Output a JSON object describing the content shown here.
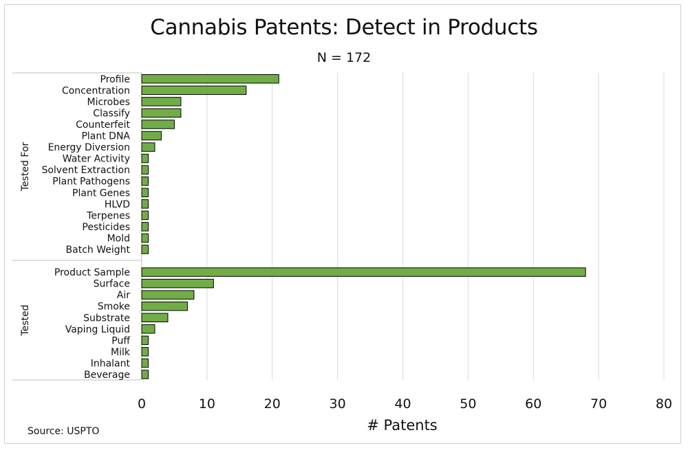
{
  "chart_data": {
    "type": "bar",
    "orientation": "horizontal",
    "title": "Cannabis Patents: Detect in Products",
    "subtitle": "N = 172",
    "xlabel": "# Patents",
    "source": "Source: USPTO",
    "xlim": [
      0,
      80
    ],
    "xticks": [
      0,
      10,
      20,
      30,
      40,
      50,
      60,
      70,
      80
    ],
    "bar_color": "#70ad47",
    "grid": true,
    "groups": [
      {
        "name": "Tested For",
        "categories": [
          "Profile",
          "Concentration",
          "Microbes",
          "Classify",
          "Counterfeit",
          "Plant DNA",
          "Energy Diversion",
          "Water Activity",
          "Solvent Extraction",
          "Plant Pathogens",
          "Plant Genes",
          "HLVD",
          "Terpenes",
          "Pesticides",
          "Mold",
          "Batch Weight"
        ],
        "values": [
          21,
          16,
          6,
          6,
          5,
          3,
          2,
          1,
          1,
          1,
          1,
          1,
          1,
          1,
          1,
          1
        ]
      },
      {
        "name": "Tested",
        "categories": [
          "Product Sample",
          "Surface",
          "Air",
          "Smoke",
          "Substrate",
          "Vaping Liquid",
          "Puff",
          "Milk",
          "Inhalant",
          "Beverage"
        ],
        "values": [
          68,
          11,
          8,
          7,
          4,
          2,
          1,
          1,
          1,
          1
        ]
      }
    ]
  }
}
